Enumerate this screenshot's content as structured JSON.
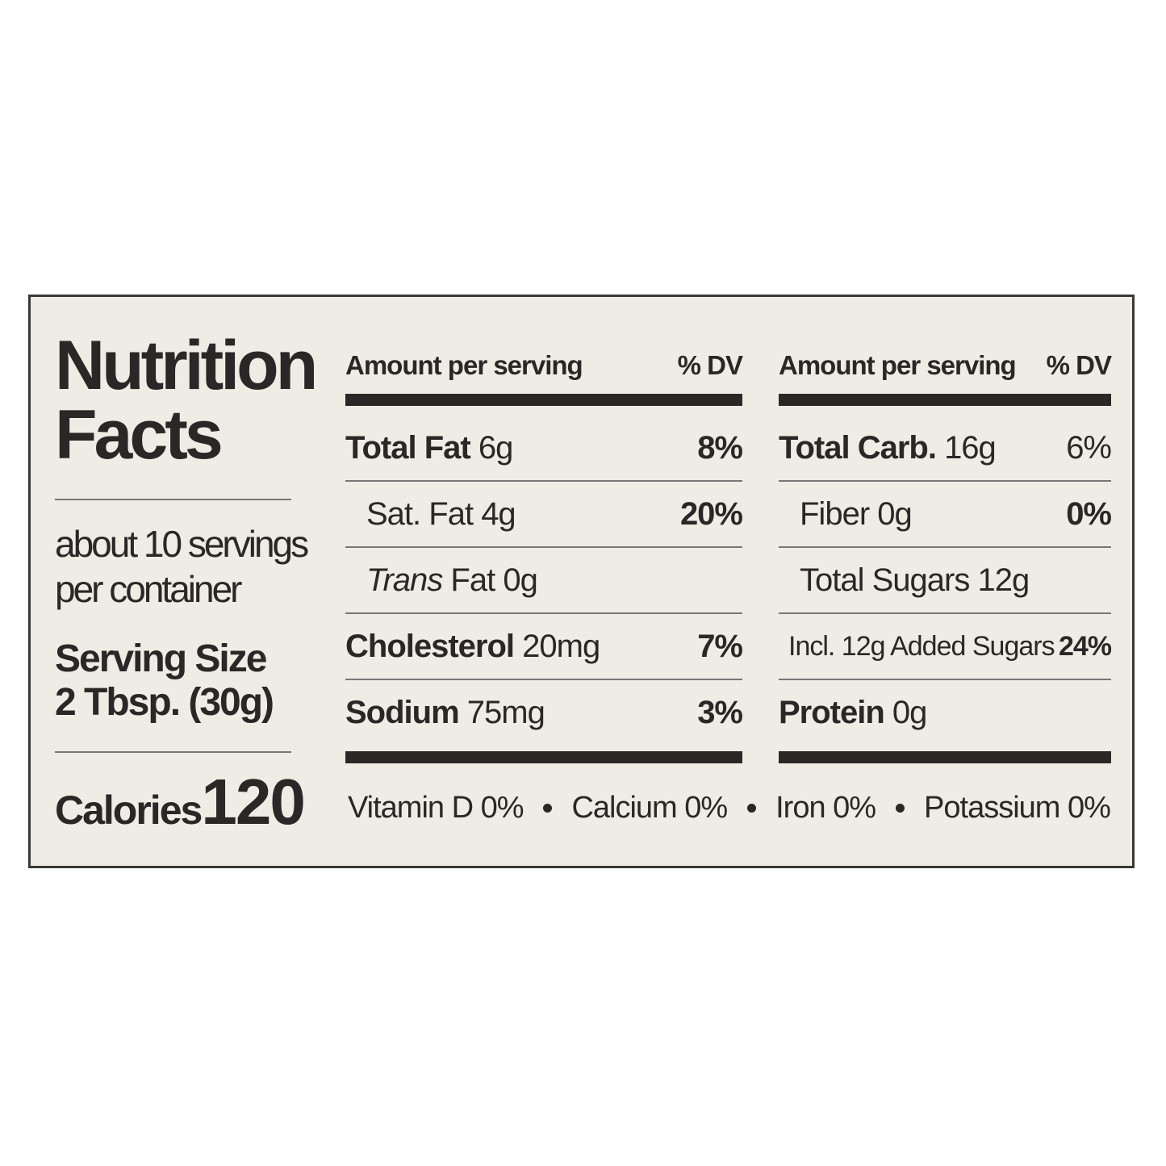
{
  "label": {
    "title": "Nutrition Facts",
    "servings": "about 10 servings per container",
    "serving_size_label": "Serving Size",
    "serving_size": "2 Tbsp. (30g)",
    "calories_label": "Calories",
    "calories": 120,
    "columns": [
      {
        "header": {
          "amount": "Amount per serving",
          "dv": "% DV"
        },
        "rows": [
          {
            "name": "Total Fat",
            "amount": "6g",
            "dv": "8%"
          },
          {
            "name": "Sat. Fat",
            "amount": "4g",
            "dv": "20%"
          },
          {
            "italic": "Trans",
            "name": "Fat",
            "amount": "0g"
          },
          {
            "name": "Cholesterol",
            "amount": "20mg",
            "dv": "7%"
          },
          {
            "name": "Sodium",
            "amount": "75mg",
            "dv": "3%"
          }
        ]
      },
      {
        "header": {
          "amount": "Amount per serving",
          "dv": "% DV"
        },
        "rows": [
          {
            "name": "Total Carb.",
            "amount": "16g",
            "dv": "6%"
          },
          {
            "name": "Fiber",
            "amount": "0g",
            "dv": "0%"
          },
          {
            "name": "Total Sugars",
            "amount": "12g"
          },
          {
            "name": "Incl. 12g Added Sugars",
            "dv": "24%"
          },
          {
            "name": "Protein",
            "amount": "0g"
          }
        ]
      }
    ],
    "vitamins": [
      "Vitamin D 0%",
      "Calcium 0%",
      "Iron 0%",
      "Potassium 0%"
    ]
  }
}
